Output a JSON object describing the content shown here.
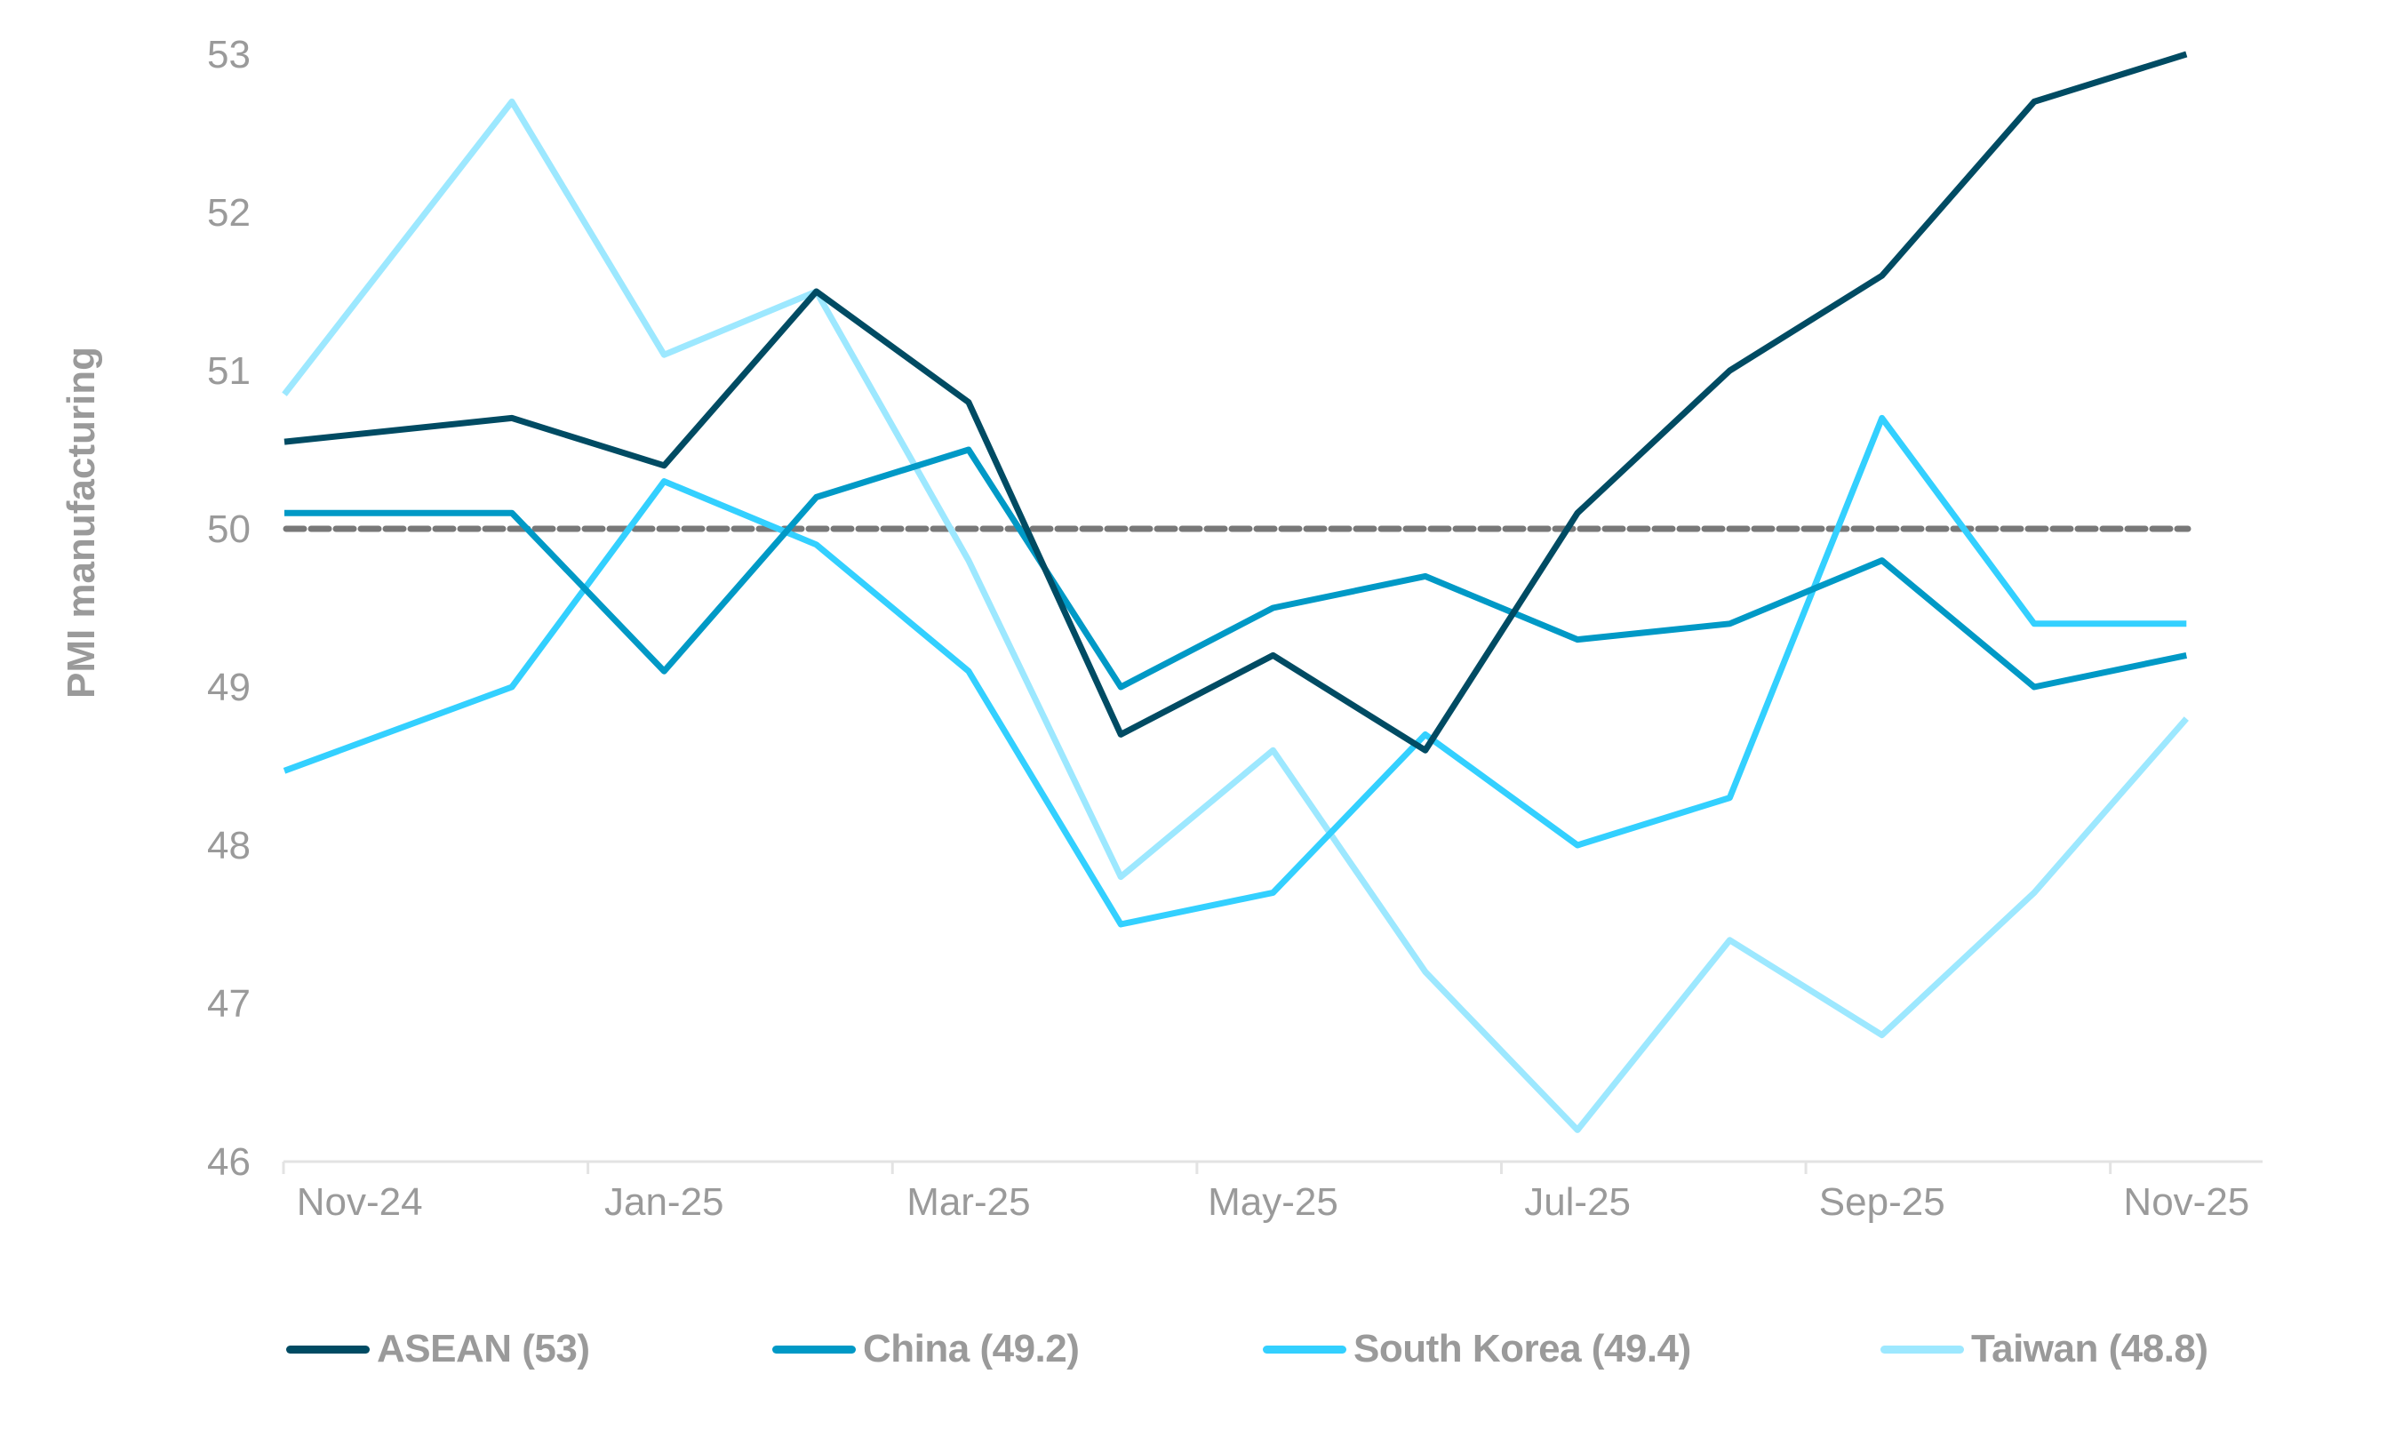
{
  "chart_data": {
    "type": "line",
    "title": "",
    "xlabel": "",
    "ylabel": "PMI manufacturing",
    "ylim": [
      46,
      53
    ],
    "yticks": [
      46,
      47,
      48,
      49,
      50,
      51,
      52,
      53
    ],
    "xtick_labels": [
      "Nov-24",
      "Jan-25",
      "Mar-25",
      "May-25",
      "Jul-25",
      "Sep-25",
      "Nov-25"
    ],
    "x": [
      "Nov-24",
      "Dec-24",
      "Jan-25",
      "Feb-25",
      "Mar-25",
      "Apr-25",
      "May-25",
      "Jun-25",
      "Jul-25",
      "Aug-25",
      "Sep-25",
      "Oct-25",
      "Nov-25"
    ],
    "reference_line": {
      "value": 50,
      "style": "dashed",
      "color": "#787878"
    },
    "grid": false,
    "legend_position": "bottom",
    "series": [
      {
        "name": "ASEAN (53)",
        "color": "#004B63",
        "values": [
          50.55,
          50.7,
          50.4,
          51.5,
          50.8,
          48.7,
          49.2,
          48.6,
          50.1,
          51.0,
          51.6,
          52.7,
          53.0
        ]
      },
      {
        "name": "China (49.2)",
        "color": "#0099C6",
        "values": [
          50.1,
          50.1,
          49.1,
          50.2,
          50.5,
          49.0,
          49.5,
          49.7,
          49.3,
          49.4,
          49.8,
          49.0,
          49.2
        ]
      },
      {
        "name": "South Korea (49.4)",
        "color": "#33D0FF",
        "values": [
          48.47,
          49.0,
          50.3,
          49.9,
          49.1,
          47.5,
          47.7,
          48.7,
          48.0,
          48.3,
          50.7,
          49.4,
          49.4
        ]
      },
      {
        "name": "Taiwan (48.8)",
        "color": "#9DE8FF",
        "values": [
          50.85,
          52.7,
          51.1,
          51.5,
          49.8,
          47.8,
          48.6,
          47.2,
          46.2,
          47.4,
          46.8,
          47.7,
          48.8
        ]
      }
    ]
  },
  "legend": {
    "items": [
      {
        "label": "ASEAN (53)",
        "color": "#004B63"
      },
      {
        "label": "China (49.2)",
        "color": "#0099C6"
      },
      {
        "label": "South Korea (49.4)",
        "color": "#33D0FF"
      },
      {
        "label": "Taiwan (48.8)",
        "color": "#9DE8FF"
      }
    ]
  }
}
